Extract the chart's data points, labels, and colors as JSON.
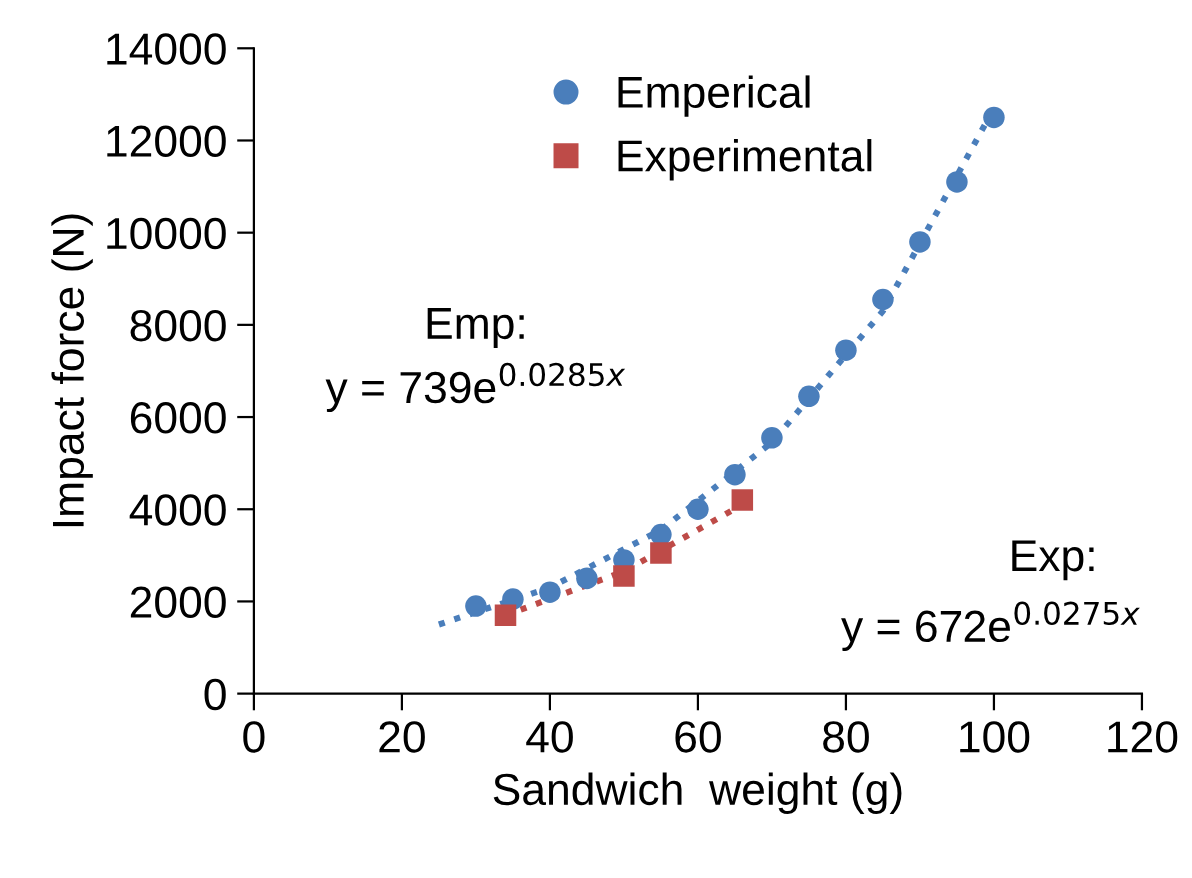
{
  "chart_data": {
    "type": "scatter",
    "xlabel": "Sandwich  weight (g)",
    "ylabel": "Impact force (N)",
    "xlim": [
      0,
      120
    ],
    "xticks": [
      0,
      20,
      40,
      60,
      80,
      100,
      120
    ],
    "ylim": [
      0,
      14000
    ],
    "yticks": [
      0,
      2000,
      4000,
      6000,
      8000,
      10000,
      12000,
      14000
    ],
    "grid": false,
    "legend": "top",
    "series": [
      {
        "name": "Emperical",
        "color": "#4a7ebb",
        "marker": "circle",
        "x": [
          30,
          35,
          40,
          45,
          50,
          55,
          60,
          65,
          70,
          75,
          80,
          85,
          90,
          95,
          100
        ],
        "values": [
          1900,
          2050,
          2200,
          2500,
          2900,
          3450,
          4000,
          4750,
          5550,
          6450,
          7450,
          8550,
          9800,
          11100,
          12500
        ]
      },
      {
        "name": "Experimental",
        "color": "#be4b48",
        "marker": "square",
        "x": [
          34,
          50,
          55,
          66
        ],
        "values": [
          1700,
          2550,
          3050,
          4200
        ]
      },
      {
        "type": "line",
        "color": "#4a7ebb",
        "line_style": "dotted",
        "marker": "none",
        "x": [
          25,
          40,
          55,
          70,
          85,
          100
        ],
        "values": [
          1500,
          2300,
          3550,
          5450,
          8300,
          12700
        ]
      },
      {
        "type": "line",
        "color": "#be4b48",
        "line_style": "dotted",
        "marker": "none",
        "x": [
          34,
          50,
          66
        ],
        "values": [
          1700,
          2650,
          4100
        ]
      }
    ],
    "annotations": [
      "Emp:",
      "y = 739e$^{0.0285x}$",
      "Exp:",
      "y = 672e$^{0.0275x}$"
    ]
  }
}
